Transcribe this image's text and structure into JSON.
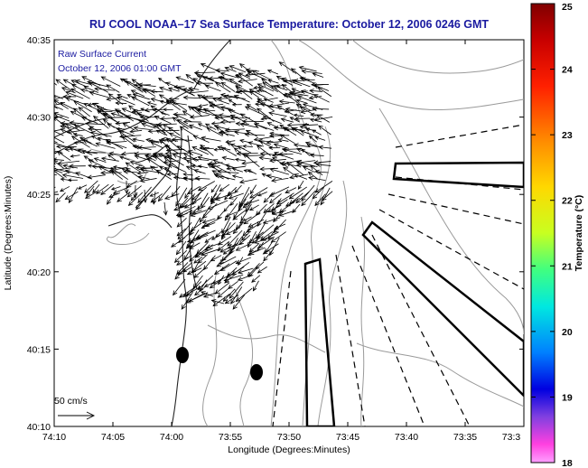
{
  "title": "RU COOL  NOAA–17  Sea Surface Temperature:  October 12, 2006 0246 GMT",
  "annotation": {
    "line1": "Raw Surface Current",
    "line2": "October 12, 2006 01:00 GMT"
  },
  "scale_label": "50 cm/s",
  "axes": {
    "xlabel": "Longitude (Degrees:Minutes)",
    "ylabel": "Latitude (Degrees:Minutes)",
    "xticks": [
      "74:10",
      "74:05",
      "74:00",
      "73:55",
      "73:50",
      "73:45",
      "73:40",
      "73:35",
      "73:3"
    ],
    "yticks": [
      "40:35",
      "40:30",
      "40:25",
      "40:20",
      "40:15",
      "40:10"
    ]
  },
  "colorbar": {
    "label": "Temperature (°C)",
    "ticks": [
      "25",
      "24",
      "23",
      "22",
      "21",
      "20",
      "19",
      "18"
    ],
    "min": 18,
    "max": 25
  },
  "colors": {
    "title_text": "#1a1aa0",
    "annotation_text": "#1a1aa0",
    "contour": "#999999",
    "coast": "#222222",
    "arrows": "#000000"
  }
}
